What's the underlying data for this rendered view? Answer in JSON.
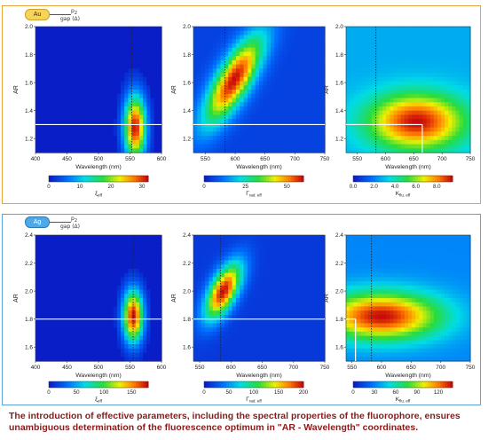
{
  "rows": [
    {
      "np_label": "Au",
      "probe_p": "p",
      "probe_sub": "2",
      "gap_label": "gap (Δ)",
      "panels": [
        {
          "id": "au-xi",
          "ylabel": "AR",
          "xlabel": "Wavelength (nm)",
          "xticks": [
            "400",
            "450",
            "500",
            "550",
            "600"
          ],
          "yticks": [
            "1.2",
            "1.4",
            "1.6",
            "1.8",
            "2.0"
          ],
          "cbar_ticks": [
            "0",
            "10",
            "20",
            "30"
          ],
          "cbar_label": "ξ",
          "cbar_sub": "eff"
        },
        {
          "id": "au-gamma",
          "ylabel": "AR",
          "xlabel": "Wavelength (nm)",
          "xticks": [
            "550",
            "600",
            "650",
            "700",
            "750"
          ],
          "yticks": [
            "1.2",
            "1.4",
            "1.6",
            "1.8",
            "2.0"
          ],
          "cbar_ticks": [
            "0",
            "25",
            "50"
          ],
          "cbar_label": "Γ",
          "cbar_sub": "rad. eff"
        },
        {
          "id": "au-k",
          "ylabel": "AR",
          "xlabel": "Wavelength (nm)",
          "xticks": [
            "550",
            "600",
            "650",
            "700",
            "750"
          ],
          "yticks": [
            "1.2",
            "1.4",
            "1.6",
            "1.8",
            "2.0"
          ],
          "cbar_ticks": [
            "0.0",
            "2.0",
            "4.0",
            "6.0",
            "8.0"
          ],
          "cbar_label": "K",
          "cbar_sub": "flu. eff"
        }
      ]
    },
    {
      "np_label": "Ag",
      "probe_p": "p",
      "probe_sub": "2",
      "gap_label": "gap (Δ)",
      "panels": [
        {
          "id": "ag-xi",
          "ylabel": "AR",
          "xlabel": "Wavelength (nm)",
          "xticks": [
            "400",
            "450",
            "500",
            "550",
            "600"
          ],
          "yticks": [
            "1.6",
            "1.8",
            "2.0",
            "2.2",
            "2.4"
          ],
          "cbar_ticks": [
            "0",
            "50",
            "100",
            "150"
          ],
          "cbar_label": "ξ",
          "cbar_sub": "eff"
        },
        {
          "id": "ag-gamma",
          "ylabel": "AR",
          "xlabel": "Wavelength (nm)",
          "xticks": [
            "550",
            "600",
            "650",
            "700",
            "750"
          ],
          "yticks": [
            "1.6",
            "1.8",
            "2.0",
            "2.2",
            "2.4"
          ],
          "cbar_ticks": [
            "0",
            "50",
            "100",
            "150",
            "200"
          ],
          "cbar_label": "Γ",
          "cbar_sub": "rad. eff"
        },
        {
          "id": "ag-k",
          "ylabel": "AR",
          "xlabel": "Wavelength (nm)",
          "xticks": [
            "550",
            "600",
            "650",
            "700",
            "750"
          ],
          "yticks": [
            "1.6",
            "1.8",
            "2.0",
            "2.2",
            "2.4"
          ],
          "cbar_ticks": [
            "0",
            "30",
            "60",
            "90",
            "120"
          ],
          "cbar_label": "K",
          "cbar_sub": "flu. eff"
        }
      ]
    }
  ],
  "caption": "The introduction of effective parameters, including the spectral properties of the fluorophore, ensures unambiguous determination of the fluorescence optimum in \"AR - Wavelength\" coordinates.",
  "chart_data": [
    {
      "type": "heatmap",
      "id": "au-xi",
      "xlabel": "Wavelength (nm)",
      "ylabel": "AR",
      "xlim": [
        400,
        600
      ],
      "ylim": [
        1.1,
        2.0
      ],
      "colorbar": {
        "label": "ξeff",
        "range": [
          0,
          32
        ]
      },
      "peak": {
        "x": 558,
        "y": 1.28
      },
      "white_line_y": 1.3,
      "dotted_x": 553
    },
    {
      "type": "heatmap",
      "id": "au-gamma",
      "xlabel": "Wavelength (nm)",
      "ylabel": "AR",
      "xlim": [
        530,
        750
      ],
      "ylim": [
        1.1,
        2.0
      ],
      "colorbar": {
        "label": "Γrad.eff",
        "range": [
          0,
          60
        ]
      },
      "peak": {
        "x": 598,
        "y": 1.62
      },
      "white_line_y": 1.3,
      "dotted_x": 583
    },
    {
      "type": "heatmap",
      "id": "au-k",
      "xlabel": "Wavelength (nm)",
      "ylabel": "AR",
      "xlim": [
        530,
        750
      ],
      "ylim": [
        1.1,
        2.0
      ],
      "colorbar": {
        "label": "Kflu.eff",
        "range": [
          0,
          9.5
        ]
      },
      "peak": {
        "x": 655,
        "y": 1.32
      },
      "white_line_y": 1.3,
      "white_vline_x": 665,
      "dotted_x": 583
    },
    {
      "type": "heatmap",
      "id": "ag-xi",
      "xlabel": "Wavelength (nm)",
      "ylabel": "AR",
      "xlim": [
        400,
        600
      ],
      "ylim": [
        1.5,
        2.4
      ],
      "colorbar": {
        "label": "ξeff",
        "range": [
          0,
          180
        ]
      },
      "peak": {
        "x": 555,
        "y": 1.82
      },
      "white_line_y": 1.8,
      "dotted_x": 555
    },
    {
      "type": "heatmap",
      "id": "ag-gamma",
      "xlabel": "Wavelength (nm)",
      "ylabel": "AR",
      "xlim": [
        540,
        750
      ],
      "ylim": [
        1.5,
        2.4
      ],
      "colorbar": {
        "label": "Γrad.eff",
        "range": [
          0,
          200
        ]
      },
      "peak": {
        "x": 588,
        "y": 2.0
      },
      "white_line_y": 1.8,
      "dotted_x": 583
    },
    {
      "type": "heatmap",
      "id": "ag-k",
      "xlabel": "Wavelength (nm)",
      "ylabel": "AR",
      "xlim": [
        540,
        750
      ],
      "ylim": [
        1.5,
        2.4
      ],
      "colorbar": {
        "label": "Kflu.eff",
        "range": [
          0,
          140
        ]
      },
      "peak": {
        "x": 600,
        "y": 1.82
      },
      "white_line_y": 1.8,
      "white_vline_x": 556,
      "dotted_x": 583
    }
  ]
}
